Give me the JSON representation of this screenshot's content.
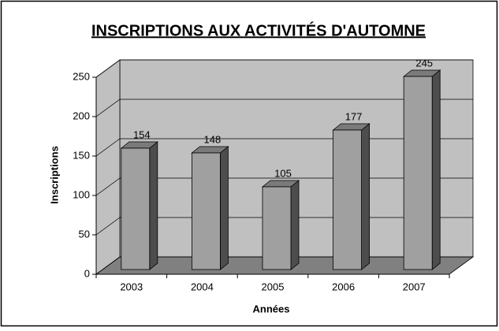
{
  "chart_data": {
    "type": "bar3d",
    "title": "INSCRIPTIONS AUX ACTIVITÉS D'AUTOMNE",
    "x_label": "Années",
    "y_label": "Inscriptions",
    "categories": [
      "2003",
      "2004",
      "2005",
      "2006",
      "2007"
    ],
    "values": [
      154,
      148,
      105,
      177,
      245
    ],
    "ylim": [
      0,
      250
    ],
    "yticks": [
      0,
      50,
      100,
      150,
      200,
      250
    ],
    "grid": true,
    "color": "#a0a0a0"
  }
}
